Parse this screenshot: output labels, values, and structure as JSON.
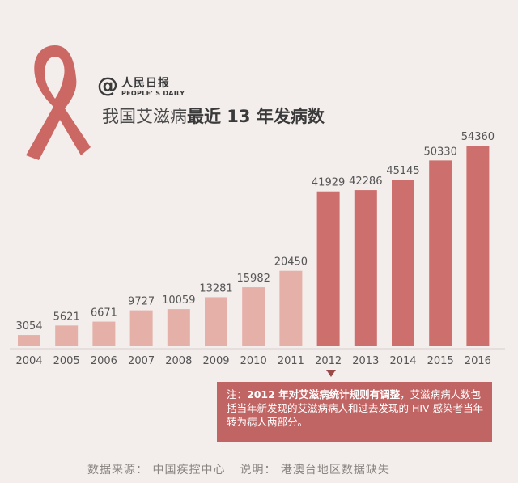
{
  "brand": {
    "logo_cn": "人民日报",
    "logo_en": "PEOPLE' S DAILY",
    "at_symbol": "@",
    "ribbon_icon": "red-ribbon-icon"
  },
  "title": {
    "prefix": "我国艾滋病",
    "bold": "最近 13 年发病数"
  },
  "note": {
    "label": "注：",
    "year": "2012",
    "em": " 年对艾滋病统计规则有调整",
    "rest": "，艾滋病病人数包括当年新发现的艾滋病病人和过去发现的 HIV 感染者当年转为病人两部分。"
  },
  "footer": {
    "source": "数据来源： 中国疾控中心",
    "remark": "说明： 港澳台地区数据缺失"
  },
  "colors": {
    "bar_pre_2012": "#e5b0a7",
    "bar_post_2012": "#cc6f6d",
    "note_bg": "#c16464"
  },
  "chart_data": {
    "type": "bar",
    "title": "我国艾滋病最近 13 年发病数",
    "categories": [
      "2004",
      "2005",
      "2006",
      "2007",
      "2008",
      "2009",
      "2010",
      "2011",
      "2012",
      "2013",
      "2014",
      "2015",
      "2016"
    ],
    "values": [
      3054,
      5621,
      6671,
      9727,
      10059,
      13281,
      15982,
      20450,
      41929,
      42286,
      45145,
      50330,
      54360
    ],
    "xlabel": "",
    "ylabel": "",
    "grid": false,
    "legend": "none"
  }
}
